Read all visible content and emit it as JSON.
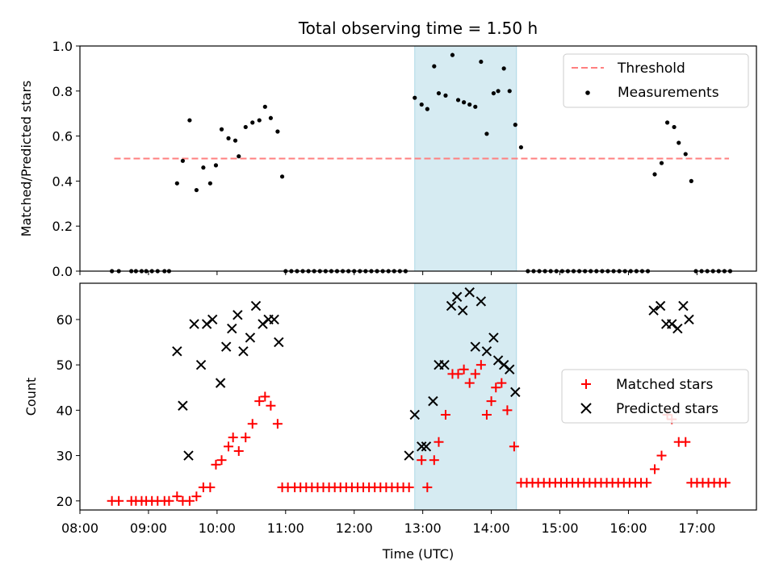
{
  "chart_data": [
    {
      "type": "scatter",
      "title": "Total observing time = 1.50 h",
      "ylabel": "Matched/Predicted stars",
      "xlim": [
        "08:00",
        "17:52"
      ],
      "ylim": [
        0,
        1.0
      ],
      "yticks": [
        "0.0",
        "0.2",
        "0.4",
        "0.6",
        "0.8",
        "1.0"
      ],
      "highlight_span": {
        "start": "12:53",
        "end": "14:22",
        "color": "#add8e6"
      },
      "threshold": {
        "name": "Threshold",
        "value": 0.5,
        "start": "08:30",
        "end": "17:28",
        "color": "#ff7f7f",
        "style": "dashed"
      },
      "legend": {
        "location": "upper right",
        "entries": [
          "Threshold",
          "Measurements"
        ]
      },
      "series": [
        {
          "name": "Measurements",
          "color": "#000000",
          "marker": "dot",
          "points": [
            [
              "08:28",
              0
            ],
            [
              "08:34",
              0
            ],
            [
              "08:45",
              0
            ],
            [
              "08:49",
              0
            ],
            [
              "08:54",
              0
            ],
            [
              "08:58",
              0
            ],
            [
              "09:03",
              0
            ],
            [
              "09:08",
              0
            ],
            [
              "09:14",
              0
            ],
            [
              "09:18",
              0
            ],
            [
              "09:25",
              0.39
            ],
            [
              "09:30",
              0.49
            ],
            [
              "09:36",
              0.67
            ],
            [
              "09:42",
              0.36
            ],
            [
              "09:48",
              0.46
            ],
            [
              "09:54",
              0.39
            ],
            [
              "09:59",
              0.47
            ],
            [
              "10:04",
              0.63
            ],
            [
              "10:10",
              0.59
            ],
            [
              "10:16",
              0.58
            ],
            [
              "10:19",
              0.51
            ],
            [
              "10:25",
              0.64
            ],
            [
              "10:31",
              0.66
            ],
            [
              "10:37",
              0.67
            ],
            [
              "10:42",
              0.73
            ],
            [
              "10:47",
              0.68
            ],
            [
              "10:53",
              0.62
            ],
            [
              "10:57",
              0.42
            ],
            [
              "11:00",
              0
            ],
            [
              "11:05",
              0
            ],
            [
              "11:10",
              0
            ],
            [
              "11:15",
              0
            ],
            [
              "11:20",
              0
            ],
            [
              "11:25",
              0
            ],
            [
              "11:30",
              0
            ],
            [
              "11:35",
              0
            ],
            [
              "11:40",
              0
            ],
            [
              "11:45",
              0
            ],
            [
              "11:50",
              0
            ],
            [
              "11:55",
              0
            ],
            [
              "12:00",
              0
            ],
            [
              "12:05",
              0
            ],
            [
              "12:10",
              0
            ],
            [
              "12:15",
              0
            ],
            [
              "12:20",
              0
            ],
            [
              "12:25",
              0
            ],
            [
              "12:30",
              0
            ],
            [
              "12:35",
              0
            ],
            [
              "12:40",
              0
            ],
            [
              "12:45",
              0
            ],
            [
              "12:53",
              0.77
            ],
            [
              "12:59",
              0.74
            ],
            [
              "13:04",
              0.72
            ],
            [
              "13:10",
              0.91
            ],
            [
              "13:14",
              0.79
            ],
            [
              "13:20",
              0.78
            ],
            [
              "13:26",
              0.96
            ],
            [
              "13:31",
              0.76
            ],
            [
              "13:36",
              0.75
            ],
            [
              "13:41",
              0.74
            ],
            [
              "13:46",
              0.73
            ],
            [
              "13:51",
              0.93
            ],
            [
              "13:56",
              0.61
            ],
            [
              "14:02",
              0.79
            ],
            [
              "14:06",
              0.8
            ],
            [
              "14:11",
              0.9
            ],
            [
              "14:16",
              0.8
            ],
            [
              "14:21",
              0.65
            ],
            [
              "14:26",
              0.55
            ],
            [
              "14:32",
              0
            ],
            [
              "14:37",
              0
            ],
            [
              "14:42",
              0
            ],
            [
              "14:47",
              0
            ],
            [
              "14:52",
              0
            ],
            [
              "14:57",
              0
            ],
            [
              "15:02",
              0
            ],
            [
              "15:07",
              0
            ],
            [
              "15:12",
              0
            ],
            [
              "15:17",
              0
            ],
            [
              "15:22",
              0
            ],
            [
              "15:27",
              0
            ],
            [
              "15:32",
              0
            ],
            [
              "15:37",
              0
            ],
            [
              "15:42",
              0
            ],
            [
              "15:47",
              0
            ],
            [
              "15:52",
              0
            ],
            [
              "15:57",
              0
            ],
            [
              "16:02",
              0
            ],
            [
              "16:07",
              0
            ],
            [
              "16:12",
              0
            ],
            [
              "16:17",
              0
            ],
            [
              "16:23",
              0.43
            ],
            [
              "16:29",
              0.48
            ],
            [
              "16:34",
              0.66
            ],
            [
              "16:40",
              0.64
            ],
            [
              "16:44",
              0.57
            ],
            [
              "16:50",
              0.52
            ],
            [
              "16:55",
              0.4
            ],
            [
              "16:59",
              0
            ],
            [
              "17:04",
              0
            ],
            [
              "17:09",
              0
            ],
            [
              "17:14",
              0
            ],
            [
              "17:19",
              0
            ],
            [
              "17:24",
              0
            ],
            [
              "17:29",
              0
            ]
          ]
        }
      ]
    },
    {
      "type": "scatter",
      "xlabel": "Time (UTC)",
      "ylabel": "Count",
      "xlim": [
        "08:00",
        "17:52"
      ],
      "ylim": [
        18,
        68
      ],
      "xticks": [
        "08:00",
        "09:00",
        "10:00",
        "11:00",
        "12:00",
        "13:00",
        "14:00",
        "15:00",
        "16:00",
        "17:00"
      ],
      "yticks": [
        "20",
        "30",
        "40",
        "50",
        "60"
      ],
      "highlight_span": {
        "start": "12:53",
        "end": "14:22",
        "color": "#add8e6"
      },
      "legend": {
        "location": "center right",
        "entries": [
          "Matched stars",
          "Predicted stars"
        ]
      },
      "series": [
        {
          "name": "Matched stars",
          "color": "#ff0000",
          "marker": "plus",
          "points": [
            [
              "08:28",
              20
            ],
            [
              "08:34",
              20
            ],
            [
              "08:45",
              20
            ],
            [
              "08:49",
              20
            ],
            [
              "08:54",
              20
            ],
            [
              "08:58",
              20
            ],
            [
              "09:03",
              20
            ],
            [
              "09:08",
              20
            ],
            [
              "09:14",
              20
            ],
            [
              "09:18",
              20
            ],
            [
              "09:25",
              21
            ],
            [
              "09:30",
              20
            ],
            [
              "09:36",
              20
            ],
            [
              "09:42",
              21
            ],
            [
              "09:48",
              23
            ],
            [
              "09:54",
              23
            ],
            [
              "09:59",
              28
            ],
            [
              "10:04",
              29
            ],
            [
              "10:10",
              32
            ],
            [
              "10:14",
              34
            ],
            [
              "10:19",
              31
            ],
            [
              "10:25",
              34
            ],
            [
              "10:31",
              37
            ],
            [
              "10:37",
              42
            ],
            [
              "10:42",
              43
            ],
            [
              "10:47",
              41
            ],
            [
              "10:53",
              37
            ],
            [
              "10:57",
              23
            ],
            [
              "11:02",
              23
            ],
            [
              "11:08",
              23
            ],
            [
              "11:13",
              23
            ],
            [
              "11:18",
              23
            ],
            [
              "11:23",
              23
            ],
            [
              "11:28",
              23
            ],
            [
              "11:33",
              23
            ],
            [
              "11:38",
              23
            ],
            [
              "11:43",
              23
            ],
            [
              "11:48",
              23
            ],
            [
              "11:53",
              23
            ],
            [
              "11:58",
              23
            ],
            [
              "12:03",
              23
            ],
            [
              "12:08",
              23
            ],
            [
              "12:13",
              23
            ],
            [
              "12:18",
              23
            ],
            [
              "12:23",
              23
            ],
            [
              "12:28",
              23
            ],
            [
              "12:33",
              23
            ],
            [
              "12:38",
              23
            ],
            [
              "12:43",
              23
            ],
            [
              "12:48",
              23
            ],
            [
              "12:59",
              29
            ],
            [
              "13:04",
              23
            ],
            [
              "13:10",
              29
            ],
            [
              "13:14",
              33
            ],
            [
              "13:20",
              39
            ],
            [
              "13:26",
              48
            ],
            [
              "13:31",
              48
            ],
            [
              "13:36",
              49
            ],
            [
              "13:41",
              46
            ],
            [
              "13:46",
              48
            ],
            [
              "13:51",
              50
            ],
            [
              "13:56",
              39
            ],
            [
              "14:00",
              42
            ],
            [
              "14:04",
              45
            ],
            [
              "14:09",
              46
            ],
            [
              "14:14",
              40
            ],
            [
              "14:20",
              32
            ],
            [
              "14:26",
              24
            ],
            [
              "14:31",
              24
            ],
            [
              "14:36",
              24
            ],
            [
              "14:41",
              24
            ],
            [
              "14:46",
              24
            ],
            [
              "14:51",
              24
            ],
            [
              "14:56",
              24
            ],
            [
              "15:01",
              24
            ],
            [
              "15:06",
              24
            ],
            [
              "15:11",
              24
            ],
            [
              "15:16",
              24
            ],
            [
              "15:21",
              24
            ],
            [
              "15:26",
              24
            ],
            [
              "15:31",
              24
            ],
            [
              "15:36",
              24
            ],
            [
              "15:41",
              24
            ],
            [
              "15:46",
              24
            ],
            [
              "15:51",
              24
            ],
            [
              "15:56",
              24
            ],
            [
              "16:01",
              24
            ],
            [
              "16:06",
              24
            ],
            [
              "16:11",
              24
            ],
            [
              "16:16",
              24
            ],
            [
              "16:23",
              27
            ],
            [
              "16:29",
              30
            ],
            [
              "16:34",
              39
            ],
            [
              "16:38",
              38
            ],
            [
              "16:44",
              33
            ],
            [
              "16:50",
              33
            ],
            [
              "16:55",
              24
            ],
            [
              "17:00",
              24
            ],
            [
              "17:05",
              24
            ],
            [
              "17:10",
              24
            ],
            [
              "17:15",
              24
            ],
            [
              "17:20",
              24
            ],
            [
              "17:25",
              24
            ]
          ]
        },
        {
          "name": "Predicted stars",
          "color": "#000000",
          "marker": "x",
          "points": [
            [
              "09:25",
              53
            ],
            [
              "09:30",
              41
            ],
            [
              "09:35",
              30
            ],
            [
              "09:40",
              59
            ],
            [
              "09:46",
              50
            ],
            [
              "09:51",
              59
            ],
            [
              "09:56",
              60
            ],
            [
              "10:03",
              46
            ],
            [
              "10:08",
              54
            ],
            [
              "10:13",
              58
            ],
            [
              "10:18",
              61
            ],
            [
              "10:23",
              53
            ],
            [
              "10:29",
              56
            ],
            [
              "10:34",
              63
            ],
            [
              "10:40",
              59
            ],
            [
              "10:45",
              60
            ],
            [
              "10:50",
              60
            ],
            [
              "10:54",
              55
            ],
            [
              "12:48",
              30
            ],
            [
              "12:53",
              39
            ],
            [
              "12:59",
              32
            ],
            [
              "13:03",
              32
            ],
            [
              "13:09",
              42
            ],
            [
              "13:14",
              50
            ],
            [
              "13:19",
              50
            ],
            [
              "13:25",
              63
            ],
            [
              "13:30",
              65
            ],
            [
              "13:35",
              62
            ],
            [
              "13:41",
              66
            ],
            [
              "13:46",
              54
            ],
            [
              "13:51",
              64
            ],
            [
              "13:56",
              53
            ],
            [
              "14:02",
              56
            ],
            [
              "14:06",
              51
            ],
            [
              "14:11",
              50
            ],
            [
              "14:16",
              49
            ],
            [
              "14:21",
              44
            ],
            [
              "16:22",
              62
            ],
            [
              "16:28",
              63
            ],
            [
              "16:33",
              59
            ],
            [
              "16:38",
              59
            ],
            [
              "16:43",
              58
            ],
            [
              "16:48",
              63
            ],
            [
              "16:53",
              60
            ]
          ]
        }
      ]
    }
  ]
}
